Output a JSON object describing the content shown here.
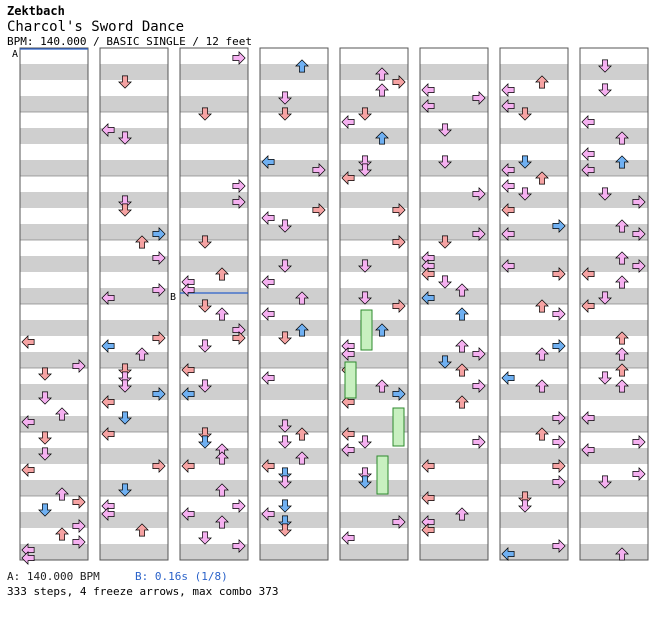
{
  "header": {
    "artist": "Zektbach",
    "title": "Charcol's Sword Dance",
    "info": "BPM: 140.000 / BASIC SINGLE / 12 feet"
  },
  "markers": {
    "a": "A",
    "b": "B"
  },
  "footer": {
    "bpm_change": "A: 140.000 BPM",
    "stop": "B: 0.16s (1/8)",
    "stats": "333 steps, 4 freeze arrows, max combo 373"
  },
  "colors": {
    "red_arrow": "#f6a3a3",
    "pink_arrow": "#f5b0f0",
    "blue_arrow": "#6fb0f2",
    "freeze": "#c8f0c0",
    "stripe": "#cfcfcf"
  }
}
